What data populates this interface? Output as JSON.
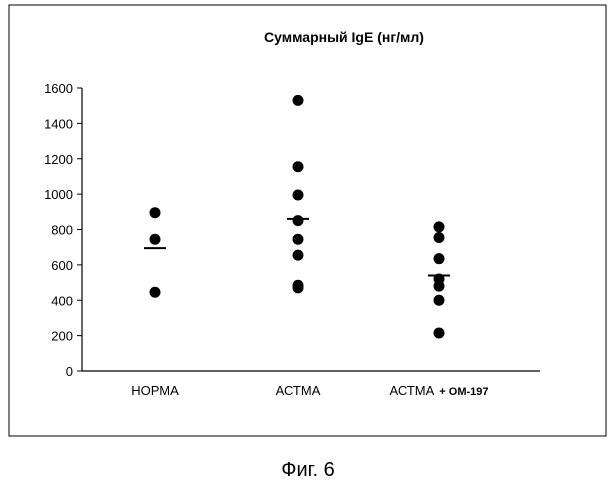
{
  "chart_data": {
    "type": "scatter",
    "title": "Суммарный IgE (нг/мл)",
    "xlabel": "",
    "ylabel": "",
    "ylim": [
      0,
      1600
    ],
    "yticks": [
      0,
      200,
      400,
      600,
      800,
      1000,
      1200,
      1400,
      1600
    ],
    "grid": false,
    "categories": [
      {
        "label": "НОРМА",
        "sublabel": "",
        "points": [
          895,
          745,
          445
        ],
        "mean": 695
      },
      {
        "label": "АСТМА",
        "sublabel": "",
        "points": [
          1530,
          1155,
          995,
          850,
          745,
          655,
          485,
          470
        ],
        "mean": 860
      },
      {
        "label": "АСТМА",
        "sublabel": "+ ОМ-197",
        "points": [
          815,
          755,
          635,
          520,
          480,
          400,
          215
        ],
        "mean": 540
      }
    ]
  },
  "figure": {
    "caption": "Фиг. 6"
  }
}
